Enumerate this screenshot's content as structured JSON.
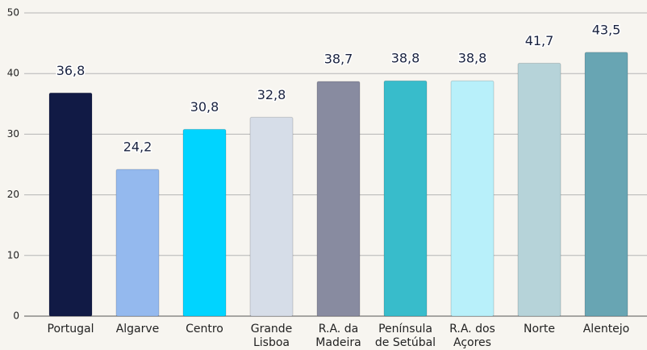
{
  "chart_data": {
    "type": "bar",
    "categories": [
      "Portugal",
      "Algarve",
      "Centro",
      "Grande Lisboa",
      "R.A. da Madeira",
      "Península de Setúbal",
      "R.A. dos Açores",
      "Norte",
      "Alentejo"
    ],
    "values": [
      36.8,
      24.2,
      30.8,
      32.8,
      38.7,
      38.8,
      38.8,
      41.7,
      43.5
    ],
    "value_labels": [
      "36,8",
      "24,2",
      "30,8",
      "32,8",
      "38,7",
      "38,8",
      "38,8",
      "41,7",
      "43,5"
    ],
    "colors": [
      "#111a45",
      "#94b9ee",
      "#00d4ff",
      "#d6dde8",
      "#888ba0",
      "#38bccb",
      "#b8f0fa",
      "#b6d3d9",
      "#68a5b3"
    ],
    "ylim": [
      0,
      50
    ],
    "yticks": [
      0,
      10,
      20,
      30,
      40,
      50
    ],
    "grid": true
  }
}
